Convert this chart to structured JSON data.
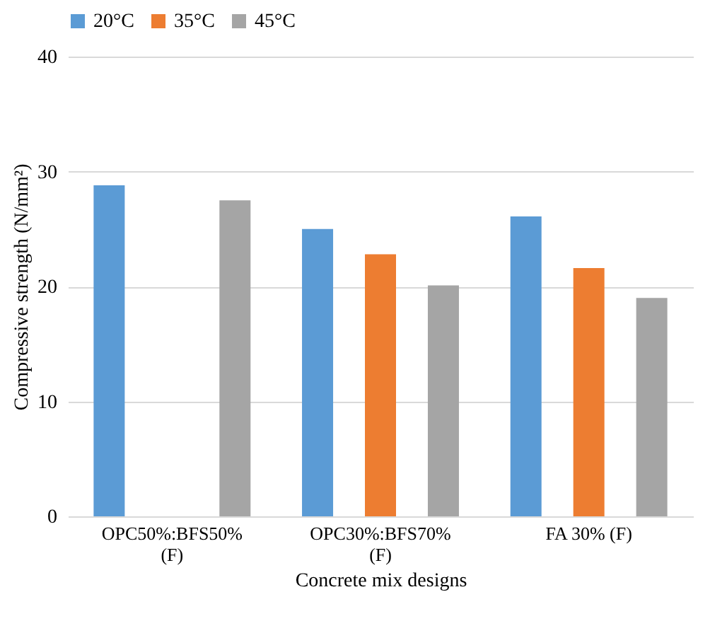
{
  "chart_data": {
    "type": "bar",
    "xlabel": "Concrete mix designs",
    "ylabel": "Compressive strength (N/mm²)",
    "categories": [
      "OPC50%:BFS50%\n(F)",
      "OPC30%:BFS70%\n(F)",
      "FA 30% (F)"
    ],
    "series": [
      {
        "name": "20°C",
        "color": "#5b9bd5",
        "values": [
          28.8,
          25.0,
          26.1
        ]
      },
      {
        "name": "35°C",
        "color": "#ed7d31",
        "values": [
          null,
          22.8,
          21.6
        ]
      },
      {
        "name": "45°C",
        "color": "#a5a5a5",
        "values": [
          27.5,
          20.1,
          19.0
        ]
      }
    ],
    "ylim": [
      0,
      40
    ],
    "yticks": [
      0,
      10,
      20,
      30,
      40
    ],
    "grid": "y",
    "legend": "top"
  }
}
